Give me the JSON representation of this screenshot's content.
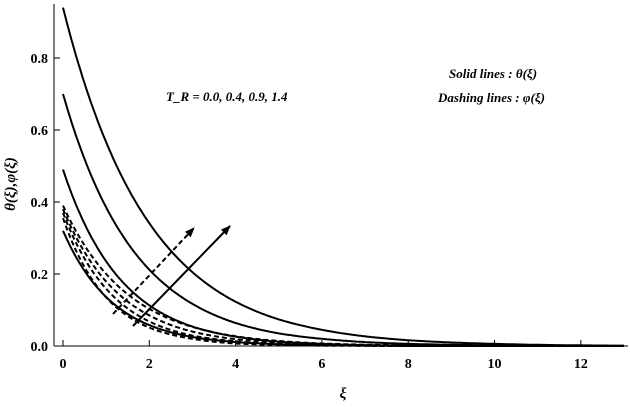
{
  "chart_data": {
    "type": "line",
    "xlabel": "ξ",
    "ylabel": "θ(ξ),φ(ξ)",
    "xlim": [
      0,
      13
    ],
    "ylim": [
      0,
      0.95
    ],
    "x_ticks": [
      "0",
      "2",
      "4",
      "6",
      "8",
      "10",
      "12"
    ],
    "y_ticks": [
      "0.0",
      "0.2",
      "0.4",
      "0.6",
      "0.8"
    ],
    "grid": false,
    "parameter_label": "T_R = 0.0, 0.4, 0.9, 1.4",
    "legend_notes": [
      "Solid lines : θ(ξ)",
      "Dashing lines : φ(ξ)"
    ],
    "series": [
      {
        "style": "solid",
        "x": [
          0,
          1,
          2,
          3,
          4,
          5,
          6,
          8,
          10,
          13
        ],
        "values": [
          0.32,
          0.136,
          0.058,
          0.025,
          0.011,
          0.005,
          0.002,
          0.0,
          0.0,
          0.0
        ]
      },
      {
        "style": "solid",
        "x": [
          0,
          1,
          2,
          3,
          4,
          5,
          6,
          8,
          10,
          13
        ],
        "values": [
          0.49,
          0.235,
          0.113,
          0.054,
          0.026,
          0.012,
          0.006,
          0.001,
          0.0,
          0.0
        ]
      },
      {
        "style": "solid",
        "x": [
          0,
          1,
          2,
          3,
          4,
          5,
          6,
          8,
          10,
          13
        ],
        "values": [
          0.7,
          0.385,
          0.212,
          0.117,
          0.064,
          0.035,
          0.02,
          0.006,
          0.002,
          0.0
        ]
      },
      {
        "style": "solid",
        "x": [
          0,
          1,
          2,
          3,
          4,
          5,
          6,
          8,
          10,
          13
        ],
        "values": [
          0.94,
          0.566,
          0.341,
          0.205,
          0.123,
          0.074,
          0.045,
          0.016,
          0.006,
          0.001
        ]
      },
      {
        "style": "dashed",
        "x": [
          0,
          1,
          2,
          3,
          4,
          5,
          6,
          8,
          10,
          13
        ],
        "values": [
          0.355,
          0.135,
          0.051,
          0.02,
          0.007,
          0.003,
          0.001,
          0.0,
          0.0,
          0.0
        ]
      },
      {
        "style": "dashed",
        "x": [
          0,
          1,
          2,
          3,
          4,
          5,
          6,
          8,
          10,
          13
        ],
        "values": [
          0.37,
          0.159,
          0.068,
          0.029,
          0.013,
          0.005,
          0.002,
          0.0,
          0.0,
          0.0
        ]
      },
      {
        "style": "dashed",
        "x": [
          0,
          1,
          2,
          3,
          4,
          5,
          6,
          8,
          10,
          13
        ],
        "values": [
          0.38,
          0.179,
          0.085,
          0.04,
          0.019,
          0.009,
          0.004,
          0.001,
          0.0,
          0.0
        ]
      },
      {
        "style": "dashed",
        "x": [
          0,
          1,
          2,
          3,
          4,
          5,
          6,
          8,
          10,
          13
        ],
        "values": [
          0.39,
          0.2,
          0.103,
          0.053,
          0.027,
          0.014,
          0.007,
          0.002,
          0.0,
          0.0
        ]
      }
    ]
  }
}
